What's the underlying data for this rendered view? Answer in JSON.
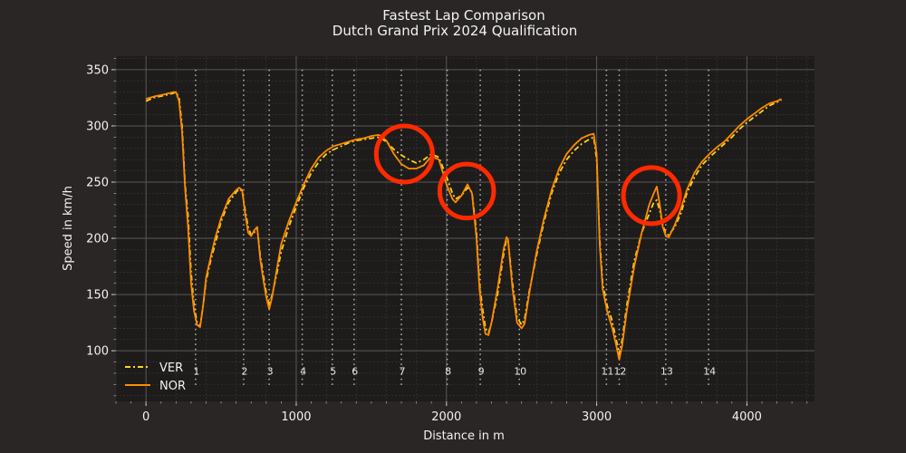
{
  "chart_data": {
    "type": "line",
    "title": "Fastest Lap Comparison",
    "subtitle": "Dutch Grand Prix 2024 Qualification",
    "xlabel": "Distance in m",
    "ylabel": "Speed in km/h",
    "xlim": [
      -200,
      4450
    ],
    "ylim": [
      55,
      362
    ],
    "xticks": [
      0,
      1000,
      2000,
      3000,
      4000
    ],
    "yticks": [
      100,
      150,
      200,
      250,
      300,
      350
    ],
    "grid": true,
    "legend_position": "lower-left",
    "colors": {
      "background": "#292625",
      "plot_background": "#1e1c1b",
      "major_grid": "#5a5757",
      "minor_grid": "#3c3938",
      "ver": "#ffd21f",
      "nor": "#ff8c00",
      "highlight_circle": "#ff2a00",
      "corner_line": "#b8b8b8"
    },
    "corners": [
      {
        "number": "1",
        "distance": 330
      },
      {
        "number": "2",
        "distance": 650
      },
      {
        "number": "3",
        "distance": 820
      },
      {
        "number": "4",
        "distance": 1040
      },
      {
        "number": "5",
        "distance": 1240
      },
      {
        "number": "6",
        "distance": 1385
      },
      {
        "number": "7",
        "distance": 1700
      },
      {
        "number": "8",
        "distance": 2005
      },
      {
        "number": "9",
        "distance": 2225
      },
      {
        "number": "10",
        "distance": 2485
      },
      {
        "number": "11",
        "distance": 3065
      },
      {
        "number": "12",
        "distance": 3150
      },
      {
        "number": "13",
        "distance": 3460
      },
      {
        "number": "14",
        "distance": 3745
      }
    ],
    "highlights": [
      {
        "distance": 1720,
        "speed": 275,
        "radius_km_h": 25
      },
      {
        "distance": 2135,
        "speed": 242,
        "radius_km_h": 24
      },
      {
        "distance": 3365,
        "speed": 238,
        "radius_km_h": 25
      }
    ],
    "series": [
      {
        "name": "VER",
        "style": "dashdot",
        "points": [
          [
            0,
            322
          ],
          [
            50,
            325
          ],
          [
            120,
            327
          ],
          [
            180,
            329
          ],
          [
            200,
            330
          ],
          [
            220,
            325
          ],
          [
            240,
            300
          ],
          [
            260,
            248
          ],
          [
            280,
            220
          ],
          [
            300,
            170
          ],
          [
            320,
            140
          ],
          [
            340,
            125
          ],
          [
            360,
            122
          ],
          [
            380,
            140
          ],
          [
            400,
            162
          ],
          [
            430,
            180
          ],
          [
            460,
            195
          ],
          [
            500,
            215
          ],
          [
            550,
            232
          ],
          [
            600,
            241
          ],
          [
            620,
            244
          ],
          [
            640,
            242
          ],
          [
            660,
            225
          ],
          [
            680,
            210
          ],
          [
            700,
            203
          ],
          [
            720,
            205
          ],
          [
            740,
            210
          ],
          [
            760,
            185
          ],
          [
            780,
            168
          ],
          [
            800,
            152
          ],
          [
            820,
            140
          ],
          [
            840,
            150
          ],
          [
            870,
            168
          ],
          [
            900,
            188
          ],
          [
            950,
            210
          ],
          [
            1000,
            228
          ],
          [
            1050,
            245
          ],
          [
            1100,
            258
          ],
          [
            1150,
            268
          ],
          [
            1200,
            275
          ],
          [
            1250,
            279
          ],
          [
            1300,
            282
          ],
          [
            1350,
            285
          ],
          [
            1400,
            287
          ],
          [
            1450,
            288
          ],
          [
            1500,
            289
          ],
          [
            1550,
            290
          ],
          [
            1600,
            286
          ],
          [
            1650,
            279
          ],
          [
            1700,
            274
          ],
          [
            1750,
            270
          ],
          [
            1800,
            267
          ],
          [
            1850,
            270
          ],
          [
            1900,
            275
          ],
          [
            1950,
            272
          ],
          [
            2000,
            255
          ],
          [
            2040,
            240
          ],
          [
            2060,
            235
          ],
          [
            2100,
            238
          ],
          [
            2140,
            245
          ],
          [
            2170,
            241
          ],
          [
            2200,
            205
          ],
          [
            2220,
            160
          ],
          [
            2240,
            138
          ],
          [
            2260,
            120
          ],
          [
            2280,
            116
          ],
          [
            2300,
            125
          ],
          [
            2340,
            150
          ],
          [
            2380,
            185
          ],
          [
            2400,
            199
          ],
          [
            2410,
            198
          ],
          [
            2440,
            160
          ],
          [
            2470,
            130
          ],
          [
            2500,
            123
          ],
          [
            2520,
            128
          ],
          [
            2550,
            152
          ],
          [
            2600,
            185
          ],
          [
            2650,
            215
          ],
          [
            2700,
            240
          ],
          [
            2750,
            258
          ],
          [
            2800,
            270
          ],
          [
            2850,
            278
          ],
          [
            2900,
            284
          ],
          [
            2950,
            288
          ],
          [
            2980,
            290
          ],
          [
            3000,
            270
          ],
          [
            3020,
            200
          ],
          [
            3040,
            160
          ],
          [
            3070,
            140
          ],
          [
            3100,
            128
          ],
          [
            3130,
            110
          ],
          [
            3150,
            97
          ],
          [
            3170,
            110
          ],
          [
            3200,
            140
          ],
          [
            3250,
            180
          ],
          [
            3300,
            205
          ],
          [
            3350,
            222
          ],
          [
            3380,
            232
          ],
          [
            3400,
            234
          ],
          [
            3420,
            225
          ],
          [
            3440,
            212
          ],
          [
            3460,
            204
          ],
          [
            3480,
            203
          ],
          [
            3520,
            210
          ],
          [
            3560,
            222
          ],
          [
            3600,
            240
          ],
          [
            3650,
            254
          ],
          [
            3700,
            265
          ],
          [
            3750,
            272
          ],
          [
            3800,
            278
          ],
          [
            3850,
            284
          ],
          [
            3900,
            290
          ],
          [
            3950,
            297
          ],
          [
            4000,
            303
          ],
          [
            4050,
            308
          ],
          [
            4100,
            313
          ],
          [
            4150,
            318
          ],
          [
            4200,
            321
          ],
          [
            4230,
            323
          ]
        ]
      },
      {
        "name": "NOR",
        "style": "solid",
        "points": [
          [
            0,
            324
          ],
          [
            50,
            326
          ],
          [
            120,
            328
          ],
          [
            180,
            330
          ],
          [
            200,
            330
          ],
          [
            220,
            322
          ],
          [
            240,
            295
          ],
          [
            260,
            245
          ],
          [
            280,
            210
          ],
          [
            300,
            160
          ],
          [
            320,
            135
          ],
          [
            340,
            123
          ],
          [
            360,
            121
          ],
          [
            380,
            140
          ],
          [
            400,
            165
          ],
          [
            430,
            183
          ],
          [
            460,
            200
          ],
          [
            500,
            218
          ],
          [
            550,
            235
          ],
          [
            600,
            243
          ],
          [
            620,
            245
          ],
          [
            640,
            243
          ],
          [
            660,
            222
          ],
          [
            680,
            205
          ],
          [
            700,
            202
          ],
          [
            720,
            207
          ],
          [
            740,
            210
          ],
          [
            760,
            182
          ],
          [
            780,
            164
          ],
          [
            800,
            148
          ],
          [
            820,
            137
          ],
          [
            840,
            148
          ],
          [
            870,
            172
          ],
          [
            900,
            195
          ],
          [
            950,
            215
          ],
          [
            1000,
            232
          ],
          [
            1050,
            248
          ],
          [
            1100,
            262
          ],
          [
            1150,
            272
          ],
          [
            1200,
            278
          ],
          [
            1250,
            282
          ],
          [
            1300,
            284
          ],
          [
            1350,
            286
          ],
          [
            1400,
            288
          ],
          [
            1450,
            289
          ],
          [
            1500,
            291
          ],
          [
            1550,
            292
          ],
          [
            1600,
            287
          ],
          [
            1650,
            275
          ],
          [
            1700,
            266
          ],
          [
            1750,
            262
          ],
          [
            1800,
            262
          ],
          [
            1850,
            265
          ],
          [
            1900,
            273
          ],
          [
            1950,
            270
          ],
          [
            2000,
            248
          ],
          [
            2040,
            235
          ],
          [
            2060,
            232
          ],
          [
            2100,
            238
          ],
          [
            2140,
            248
          ],
          [
            2170,
            240
          ],
          [
            2200,
            200
          ],
          [
            2220,
            155
          ],
          [
            2240,
            130
          ],
          [
            2260,
            115
          ],
          [
            2280,
            114
          ],
          [
            2300,
            125
          ],
          [
            2340,
            155
          ],
          [
            2380,
            190
          ],
          [
            2400,
            201
          ],
          [
            2410,
            199
          ],
          [
            2440,
            155
          ],
          [
            2470,
            125
          ],
          [
            2500,
            120
          ],
          [
            2520,
            124
          ],
          [
            2550,
            150
          ],
          [
            2600,
            188
          ],
          [
            2650,
            218
          ],
          [
            2700,
            243
          ],
          [
            2750,
            262
          ],
          [
            2800,
            275
          ],
          [
            2850,
            283
          ],
          [
            2900,
            289
          ],
          [
            2950,
            292
          ],
          [
            2980,
            293
          ],
          [
            3000,
            275
          ],
          [
            3020,
            195
          ],
          [
            3040,
            155
          ],
          [
            3070,
            135
          ],
          [
            3100,
            122
          ],
          [
            3130,
            105
          ],
          [
            3150,
            92
          ],
          [
            3170,
            105
          ],
          [
            3200,
            135
          ],
          [
            3250,
            175
          ],
          [
            3300,
            205
          ],
          [
            3350,
            230
          ],
          [
            3380,
            240
          ],
          [
            3400,
            246
          ],
          [
            3420,
            230
          ],
          [
            3440,
            210
          ],
          [
            3460,
            202
          ],
          [
            3480,
            201
          ],
          [
            3520,
            212
          ],
          [
            3560,
            226
          ],
          [
            3600,
            243
          ],
          [
            3650,
            258
          ],
          [
            3700,
            268
          ],
          [
            3750,
            275
          ],
          [
            3800,
            281
          ],
          [
            3850,
            286
          ],
          [
            3900,
            293
          ],
          [
            3950,
            300
          ],
          [
            4000,
            306
          ],
          [
            4050,
            311
          ],
          [
            4100,
            316
          ],
          [
            4150,
            320
          ],
          [
            4200,
            322
          ],
          [
            4230,
            324
          ]
        ]
      }
    ]
  }
}
